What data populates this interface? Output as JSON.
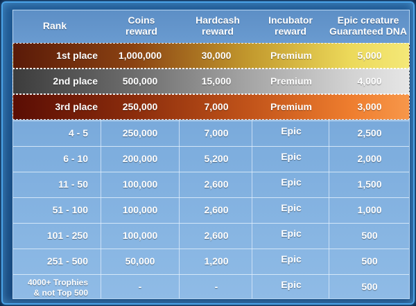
{
  "header": {
    "rank": "Rank",
    "coins": "Coins\nreward",
    "hardcash": "Hardcash\nreward",
    "incubator": "Incubator\nreward",
    "epic_dna": "Epic creature\nGuaranteed DNA"
  },
  "rows": [
    {
      "rank": "1st place",
      "coins": "1,000,000",
      "hardcash": "30,000",
      "incubator": "Premium",
      "dna": "5,000"
    },
    {
      "rank": "2nd place",
      "coins": "500,000",
      "hardcash": "15,000",
      "incubator": "Premium",
      "dna": "4,000"
    },
    {
      "rank": "3rd place",
      "coins": "250,000",
      "hardcash": "7,000",
      "incubator": "Premium",
      "dna": "3,000"
    },
    {
      "rank": "4 - 5",
      "coins": "250,000",
      "hardcash": "7,000",
      "incubator": "Epic",
      "dna": "2,500"
    },
    {
      "rank": "6 - 10",
      "coins": "200,000",
      "hardcash": "5,200",
      "incubator": "Epic",
      "dna": "2,000"
    },
    {
      "rank": "11 - 50",
      "coins": "100,000",
      "hardcash": "2,600",
      "incubator": "Epic",
      "dna": "1,500"
    },
    {
      "rank": "51 - 100",
      "coins": "100,000",
      "hardcash": "2,600",
      "incubator": "Epic",
      "dna": "1,000"
    },
    {
      "rank": "101 - 250",
      "coins": "100,000",
      "hardcash": "2,600",
      "incubator": "Epic",
      "dna": "500"
    },
    {
      "rank": "251 - 500",
      "coins": "50,000",
      "hardcash": "1,200",
      "incubator": "Epic",
      "dna": "500"
    },
    {
      "rank": "4000+ Trophies\n& not Top 500",
      "coins": "-",
      "hardcash": "-",
      "incubator": "Epic",
      "dna": "500"
    }
  ],
  "colors": {
    "gold_row": "#ecd95a",
    "silver_row": "#d2d2d2",
    "bronze_row": "#ee7d2e",
    "table_bg": "#7eaede",
    "frame_border": "#4aa3e8"
  }
}
